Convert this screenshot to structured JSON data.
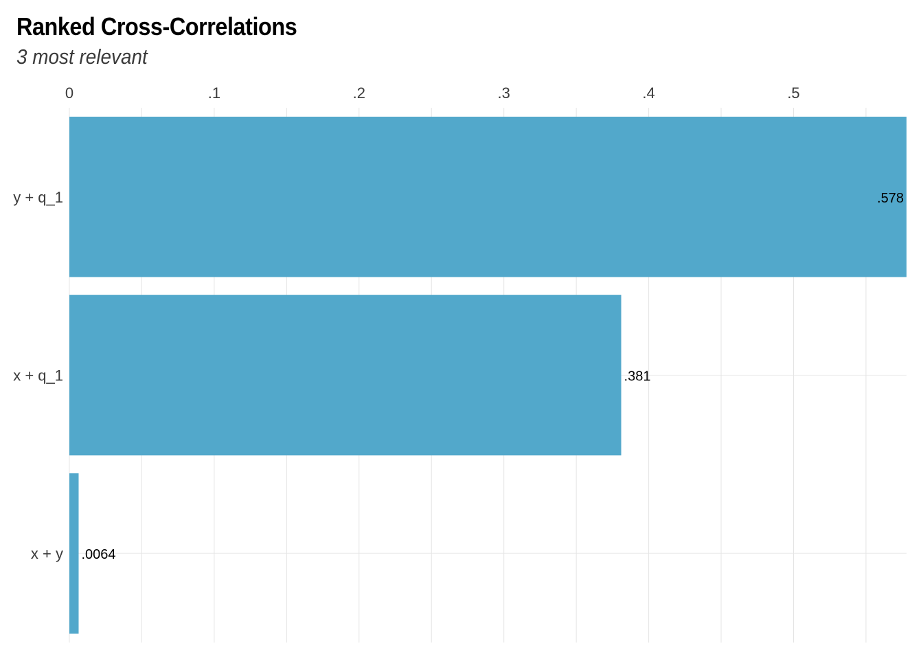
{
  "chart_data": {
    "type": "bar",
    "orientation": "horizontal",
    "title": "Ranked Cross-Correlations",
    "subtitle": "3 most relevant",
    "categories": [
      "y + q_1",
      "x + q_1",
      "x + y"
    ],
    "values": [
      0.578,
      0.381,
      0.0064
    ],
    "value_labels": [
      ".578",
      ".381",
      ".0064"
    ],
    "x_ticks": [
      0,
      0.1,
      0.2,
      0.3,
      0.4,
      0.5
    ],
    "x_tick_labels": [
      "0",
      ".1",
      ".2",
      ".3",
      ".4",
      ".5"
    ],
    "xlim": [
      0,
      0.578
    ],
    "x_axis_position": "top",
    "grid": true,
    "legend": "none",
    "bar_color": "#52a8cb",
    "grid_color": "#e5e5e5"
  }
}
